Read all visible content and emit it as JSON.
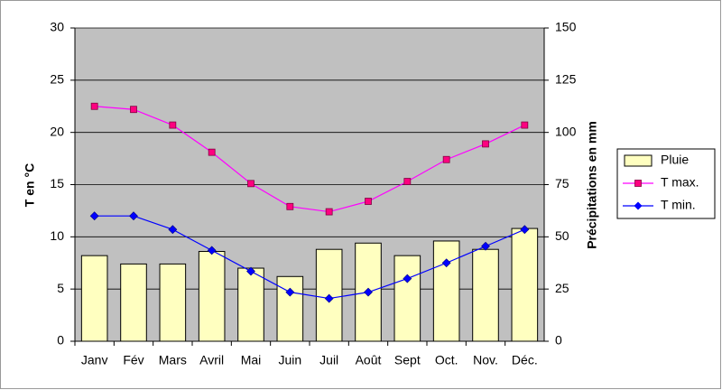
{
  "chart_data": {
    "type": "bar",
    "categories": [
      "Janv",
      "Fév",
      "Mars",
      "Avril",
      "Mai",
      "Juin",
      "Juil",
      "Août",
      "Sept",
      "Oct.",
      "Nov.",
      "Déc."
    ],
    "series": [
      {
        "name": "Pluie",
        "type": "bar",
        "axis": "y2",
        "color": "#ffffc0",
        "values": [
          41,
          37,
          37,
          43,
          35,
          31,
          44,
          47,
          41,
          48,
          44,
          54
        ]
      },
      {
        "name": "T max.",
        "type": "line",
        "marker": "square",
        "color": "#ff00ff",
        "values": [
          22.5,
          22.2,
          20.7,
          18.1,
          15.1,
          12.9,
          12.4,
          13.4,
          15.3,
          17.4,
          18.9,
          20.7
        ]
      },
      {
        "name": "T min.",
        "type": "line",
        "marker": "diamond",
        "color": "#0000ff",
        "values": [
          12.0,
          12.0,
          10.7,
          8.7,
          6.7,
          4.7,
          4.1,
          4.7,
          6.0,
          7.5,
          9.1,
          10.7
        ]
      }
    ],
    "y_label": "T en °C",
    "y2_label": "Précipitations en mm",
    "ylim": [
      0,
      30
    ],
    "yticks": [
      0,
      5,
      10,
      15,
      20,
      25,
      30
    ],
    "y2lim": [
      0,
      150
    ],
    "y2ticks": [
      0,
      25,
      50,
      75,
      100,
      125,
      150
    ],
    "grid": true,
    "legend": "right",
    "background": "#c0c0c0"
  }
}
